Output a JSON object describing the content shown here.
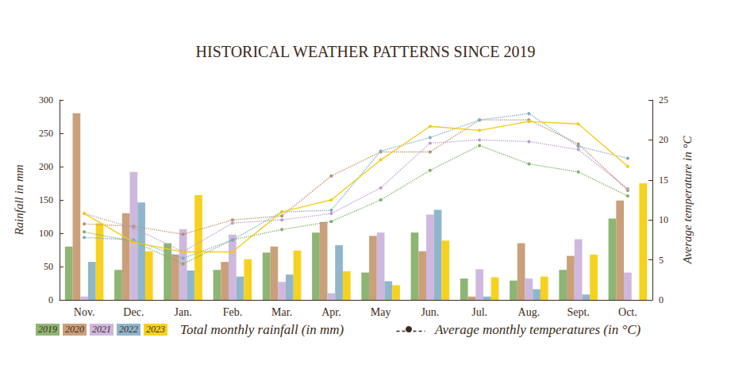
{
  "chart_data": {
    "type": "bar",
    "title": "HISTORICAL WEATHER PATTERNS SINCE 2019",
    "y_label": "Rainfall in mm",
    "y2_label": "Average temperature in °C",
    "annotations": [
      "Total monthly rainfall (in mm)",
      "Average monthly temperatures (in °C)"
    ],
    "categories": [
      "Nov.",
      "Dec.",
      "Jan.",
      "Feb.",
      "Mar.",
      "Apr.",
      "May",
      "Jun.",
      "Jul.",
      "Aug.",
      "Sept.",
      "Oct."
    ],
    "ylim": [
      0,
      300
    ],
    "yticks": [
      0,
      50,
      100,
      150,
      200,
      250,
      300
    ],
    "y2lim": [
      0,
      25
    ],
    "y2ticks": [
      0,
      5,
      10,
      15,
      20,
      25
    ],
    "grid": false,
    "legend": "bottom",
    "series": [
      {
        "name": "2019",
        "type": "bar",
        "color": "#8db573",
        "values": [
          80,
          45,
          85,
          45,
          71,
          101,
          41,
          101,
          32,
          29,
          45,
          122
        ]
      },
      {
        "name": "2020",
        "type": "bar",
        "color": "#c9a07a",
        "values": [
          280,
          130,
          68,
          57,
          80,
          117,
          96,
          73,
          5,
          85,
          66,
          149
        ]
      },
      {
        "name": "2021",
        "type": "bar",
        "color": "#cfb8de",
        "values": [
          5,
          192,
          106,
          98,
          27,
          10,
          101,
          128,
          46,
          32,
          91,
          41
        ]
      },
      {
        "name": "2022",
        "type": "bar",
        "color": "#8fb6cb",
        "values": [
          57,
          146,
          44,
          35,
          38,
          82,
          28,
          135,
          5,
          16,
          8,
          null
        ]
      },
      {
        "name": "2023",
        "type": "bar",
        "color": "#f6d21e",
        "values": [
          115,
          73,
          157,
          61,
          74,
          43,
          22,
          89,
          34,
          35,
          68,
          175
        ]
      },
      {
        "name": "2019",
        "type": "line",
        "axis": "y2",
        "color": "#7fae62",
        "marker": "circle",
        "line_style": "dotted",
        "values": [
          8.5,
          7.3,
          4.5,
          7.5,
          8.8,
          9.8,
          12.5,
          16.2,
          19.3,
          17,
          16,
          13
        ]
      },
      {
        "name": "2020",
        "type": "line",
        "axis": "y2",
        "color": "#b98e66",
        "marker": "circle",
        "line_style": "dotted",
        "values": [
          9.5,
          9.2,
          8.2,
          10,
          10.5,
          15.5,
          18.5,
          18.5,
          22.5,
          22.5,
          19.5,
          13.7
        ]
      },
      {
        "name": "2021",
        "type": "line",
        "axis": "y2",
        "color": "#b99ccc",
        "marker": "circle",
        "line_style": "dotted",
        "values": [
          10.8,
          9,
          6,
          9.6,
          10,
          10.8,
          14,
          19.6,
          20,
          19.8,
          18.8,
          13.9
        ]
      },
      {
        "name": "2022",
        "type": "line",
        "axis": "y2",
        "color": "#78a9c2",
        "marker": "circle",
        "line_style": "dotted",
        "values": [
          7.8,
          7.5,
          5.2,
          7.5,
          11,
          11.2,
          18.6,
          20.3,
          22.5,
          23.3,
          19.2,
          17.7
        ]
      },
      {
        "name": "2023",
        "type": "line",
        "axis": "y2",
        "color": "#f2cc12",
        "marker": "circle",
        "line_style": "solid",
        "values": [
          10.8,
          7.2,
          6,
          6,
          11,
          12.5,
          17.5,
          21.7,
          21.2,
          22.3,
          22,
          16.7
        ]
      }
    ]
  }
}
